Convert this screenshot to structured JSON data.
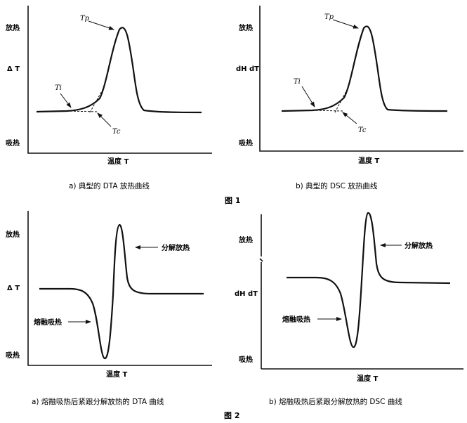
{
  "figure1": {
    "label": "图 1",
    "panel_a": {
      "caption": "a) 典型的 DTA 放热曲线",
      "y_top": "放热",
      "y_mid": "Δ T",
      "y_bottom": "吸热",
      "x_label": "温度 T",
      "tp": "Tp",
      "ti": "Ti",
      "tc": "Tc"
    },
    "panel_b": {
      "caption": "b) 典型的 DSC 放热曲线",
      "y_top": "放热",
      "y_mid": "dH dT",
      "y_bottom": "吸热",
      "x_label": "温度 T",
      "tp": "Tp",
      "ti": "Ti",
      "tc": "Tc"
    }
  },
  "figure2": {
    "label": "图 2",
    "panel_a": {
      "caption": "a) 熔融吸热后紧跟分解放热的 DTA 曲线",
      "y_top": "放热",
      "y_mid": "Δ T",
      "y_bottom": "吸热",
      "x_label": "温度 T",
      "decomp": "分解放热",
      "melt": "熔融吸热"
    },
    "panel_b": {
      "caption": "b) 熔融吸热后紧跟分解放热的 DSC 曲线",
      "y_top": "放热",
      "y_mid": "dH dT",
      "y_bottom": "吸热",
      "x_label": "温度 T",
      "decomp": "分解放热",
      "melt": "熔融吸热"
    }
  }
}
